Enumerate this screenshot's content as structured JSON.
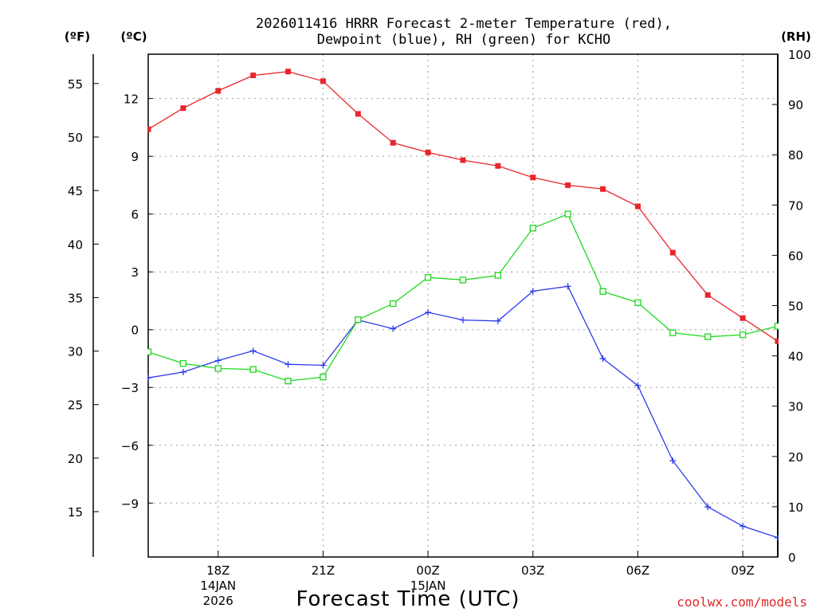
{
  "chart_data": {
    "type": "line",
    "title_line1": "2026011416 HRRR Forecast 2-meter Temperature (red),",
    "title_line2": "Dewpoint (blue), RH (green) for KCHO",
    "xlabel": "Forecast Time (UTC)",
    "credit": "coolwx.com/models",
    "axis_heads": {
      "f": "(ºF)",
      "c": "(ºC)",
      "rh": "(RH)"
    },
    "x_ticks": [
      {
        "hour": 18,
        "lines": [
          "18Z",
          "14JAN",
          "2026"
        ]
      },
      {
        "hour": 21,
        "lines": [
          "21Z"
        ]
      },
      {
        "hour": 24,
        "lines": [
          "00Z",
          "15JAN"
        ]
      },
      {
        "hour": 27,
        "lines": [
          "03Z"
        ]
      },
      {
        "hour": 30,
        "lines": [
          "06Z"
        ]
      },
      {
        "hour": 33,
        "lines": [
          "09Z"
        ]
      }
    ],
    "x_range": [
      16,
      34
    ],
    "y_celsius_range": [
      -11.8,
      14.3
    ],
    "y_celsius_ticks": [
      -9,
      -6,
      -3,
      0,
      3,
      6,
      9,
      12
    ],
    "y_celsius_tick_labels": [
      "−9",
      "−6",
      "−3",
      "0",
      "3",
      "6",
      "9",
      "12"
    ],
    "y_fahrenheit_ticks": [
      15,
      20,
      25,
      30,
      35,
      40,
      45,
      50,
      55
    ],
    "y_rh_range": [
      0,
      100
    ],
    "y_rh_ticks": [
      0,
      10,
      20,
      30,
      40,
      50,
      60,
      70,
      80,
      90,
      100
    ],
    "colors": {
      "temperature": "#e8262b",
      "dewpoint": "#2b3be8",
      "rh": "#1fd81f"
    },
    "series": [
      {
        "name": "2-meter Temperature",
        "unit": "C",
        "marker": "filled-square",
        "x": [
          16,
          17,
          18,
          19,
          20,
          21,
          22,
          23,
          24,
          25,
          26,
          27,
          28,
          29,
          30,
          31,
          32,
          33,
          34
        ],
        "values": [
          10.4,
          11.5,
          12.4,
          13.2,
          13.4,
          12.9,
          11.2,
          9.7,
          9.2,
          8.8,
          8.5,
          7.9,
          7.5,
          7.3,
          6.4,
          4.0,
          1.8,
          0.6,
          -0.6
        ]
      },
      {
        "name": "Dewpoint",
        "unit": "C",
        "marker": "plus",
        "x": [
          16,
          17,
          18,
          19,
          20,
          21,
          22,
          23,
          24,
          25,
          26,
          27,
          28,
          29,
          30,
          31,
          32,
          33,
          34
        ],
        "values": [
          -2.5,
          -2.2,
          -1.6,
          -1.1,
          -1.8,
          -1.85,
          0.5,
          0.05,
          0.9,
          0.5,
          0.45,
          2.0,
          2.25,
          -1.5,
          -2.9,
          -6.8,
          -9.2,
          -10.2,
          -10.8
        ]
      },
      {
        "name": "RH",
        "unit": "%",
        "marker": "open-square",
        "x": [
          16,
          17,
          18,
          19,
          20,
          21,
          22,
          23,
          24,
          25,
          26,
          27,
          28,
          29,
          30,
          31,
          32,
          33,
          34
        ],
        "values": [
          40.8,
          38.5,
          37.5,
          37.3,
          35.0,
          35.8,
          47.2,
          50.4,
          55.6,
          55.1,
          56.0,
          65.4,
          68.2,
          52.8,
          50.6,
          44.6,
          43.8,
          44.2,
          45.9
        ]
      }
    ]
  }
}
